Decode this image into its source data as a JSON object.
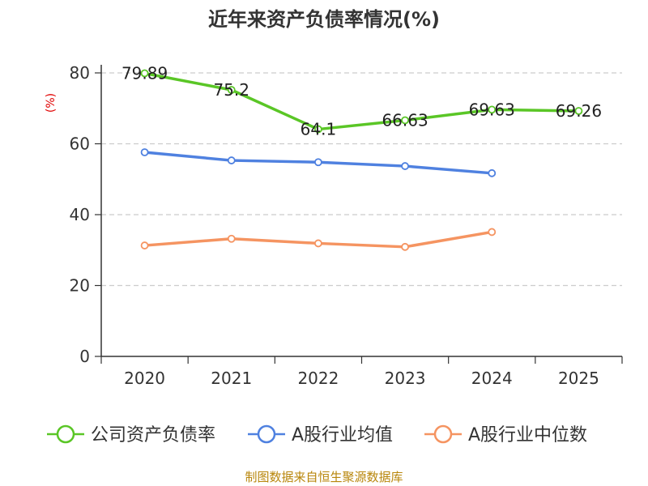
{
  "chart_data": {
    "type": "line",
    "title": "近年来资产负债率情况(%)",
    "ylabel": "(%)",
    "xlabel": "",
    "ylim": [
      0,
      80
    ],
    "yticks": [
      0,
      20,
      40,
      60,
      80
    ],
    "categories": [
      "2020",
      "2021",
      "2022",
      "2023",
      "2024",
      "2025"
    ],
    "grid": true,
    "legend_position": "bottom",
    "series": [
      {
        "name": "公司资产负债率",
        "color": "#5ac626",
        "values": [
          79.89,
          75.2,
          64.1,
          66.63,
          69.63,
          69.26
        ],
        "labels": [
          "79.89",
          "75.2",
          "64.1",
          "66.63",
          "69.63",
          "69.26"
        ]
      },
      {
        "name": "A股行业均值",
        "color": "#4f81e0",
        "values": [
          57.6,
          55.3,
          54.8,
          53.7,
          51.7,
          null
        ]
      },
      {
        "name": "A股行业中位数",
        "color": "#f59461",
        "values": [
          31.3,
          33.2,
          31.9,
          30.9,
          35.1,
          null
        ]
      }
    ],
    "source": "制图数据来自恒生聚源数据库"
  }
}
